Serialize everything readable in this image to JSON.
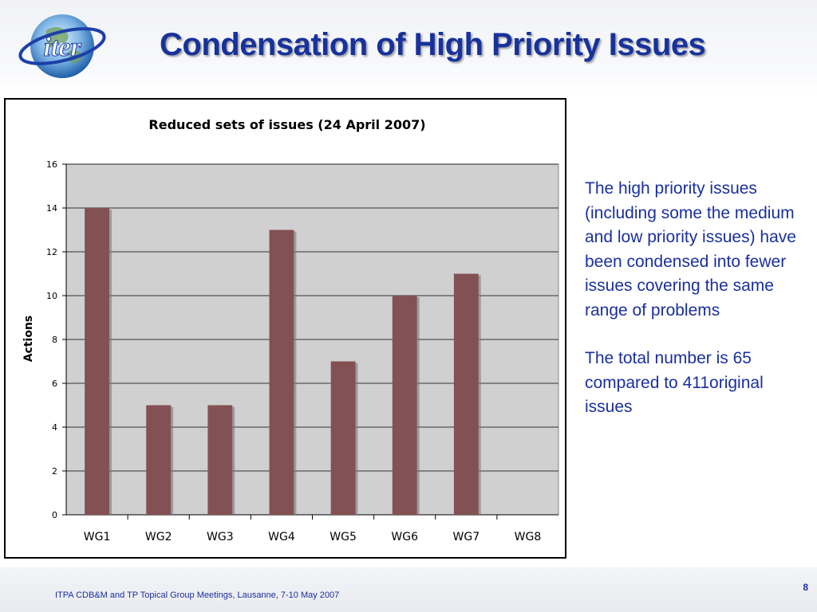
{
  "slide": {
    "title": "Condensation of High Priority Issues",
    "logo_text": "iter",
    "body_paragraphs": [
      "The high priority issues (including some the medium and low priority issues) have been condensed into fewer issues covering the same range of problems",
      "The  total number is 65 compared to 411original issues"
    ],
    "footer": "ITPA CDB&M and TP Topical Group Meetings, Lausanne, 7-10 May 2007",
    "page_number": "8"
  },
  "colors": {
    "title": "#17329c",
    "body_text": "#1a2fa0",
    "bar_fill": "#835153",
    "plot_background": "#d0d0d0"
  },
  "chart_data": {
    "type": "bar",
    "title": "Reduced sets of issues (24 April 2007)",
    "xlabel": "",
    "ylabel": "Actions",
    "categories": [
      "WG1",
      "WG2",
      "WG3",
      "WG4",
      "WG5",
      "WG6",
      "WG7",
      "WG8"
    ],
    "values": [
      14,
      5,
      5,
      13,
      7,
      10,
      11,
      0
    ],
    "ylim": [
      0,
      16
    ],
    "yticks": [
      "0",
      "2",
      "4",
      "6",
      "8",
      "10",
      "12",
      "14",
      "16"
    ],
    "grid": true,
    "legend": "none"
  }
}
